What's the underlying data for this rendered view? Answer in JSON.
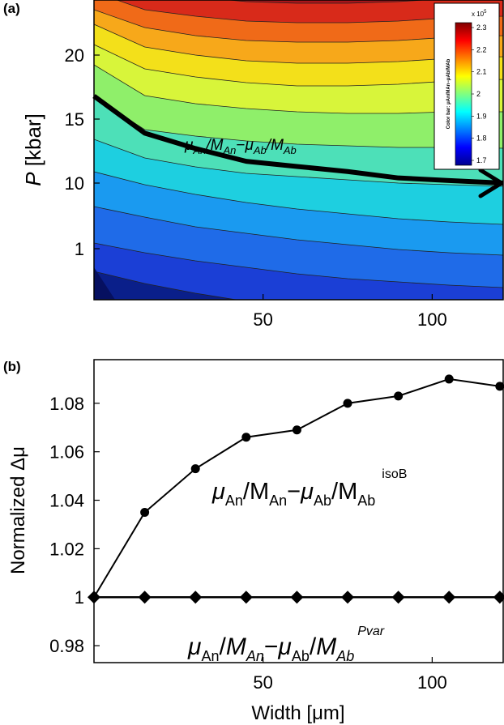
{
  "colors": {
    "contour_levels": [
      "#0a1f8a",
      "#1b3fd6",
      "#1f6be8",
      "#1a9af0",
      "#1ecfe0",
      "#4de0b8",
      "#8fef6a",
      "#d8f53a",
      "#f3e01a",
      "#f7a81a",
      "#f06a18",
      "#d82a1a",
      "#a8141a",
      "#7a0e10"
    ],
    "colorbar": [
      "#00008f",
      "#0000ff",
      "#0080ff",
      "#00ffff",
      "#80ff80",
      "#ffff00",
      "#ff8000",
      "#ff0000",
      "#800000"
    ]
  },
  "panel_a": {
    "label": "(a)",
    "ylabel_italic": "P",
    "ylabel_rest": " [kbar]",
    "xtick_labels": [
      "50",
      "100"
    ],
    "ytick_labels": [
      "20",
      "15",
      "10",
      "1"
    ],
    "curve_label": {
      "mu1": "μ",
      "sub1": "An",
      "slash1": "/",
      "m1": "M",
      "sub2": "An",
      "minus": "−",
      "mu2": "μ",
      "sub3": "Ab",
      "slash2": "/",
      "m2": "M",
      "sub4": "Ab"
    },
    "colorbar": {
      "scale": "x 10",
      "scale_exp": "5",
      "title": "Color bar: μAn/MAn−μAb/MAb",
      "tick_labels": [
        "2.3",
        "2.2",
        "2.1",
        "2",
        "1.9",
        "1.8",
        "1.7"
      ]
    }
  },
  "panel_b": {
    "label": "(b)",
    "ylabel": "Normalized Δμ",
    "xlabel": "Width [μm]",
    "xtick_labels": [
      "50",
      "100"
    ],
    "ytick_labels": [
      "1.08",
      "1.06",
      "1.04",
      "1.02",
      "1",
      "0.98"
    ],
    "label_isoB": {
      "mu1": "μ",
      "sub1": "An",
      "slash1": "/M",
      "sub2": "An",
      "minus": "−",
      "mu2": "μ",
      "sub3": "Ab",
      "slash2": "/M",
      "sub4": "Ab",
      "sup": "isoB"
    },
    "label_pvar": {
      "mu1": "μ",
      "sub1": "An",
      "slash1": "/",
      "m1": "M",
      "sub2": "An",
      "minus": "−",
      "mu2": "μ",
      "sub3": "Ab",
      "slash2": "/",
      "m2": "M",
      "sub4": "Ab",
      "sup": "Pvar"
    }
  },
  "chart_data": [
    {
      "type": "heatmap",
      "panel": "(a)",
      "title": "",
      "xlabel": "",
      "ylabel": "P [kbar]",
      "xlim": [
        0,
        121
      ],
      "x_ticks": [
        50,
        100
      ],
      "y_ticks": [
        20,
        15,
        10,
        1
      ],
      "colorbar": {
        "label": "μAn/MAn−μAb/MAb",
        "scale": "x 10^5",
        "range": [
          1.7,
          2.3
        ],
        "ticks": [
          2.3,
          2.2,
          2.1,
          2,
          1.9,
          1.8,
          1.7
        ]
      },
      "series": [
        {
          "name": "μAn/MAn−μAb/MAb",
          "x": [
            0,
            15,
            30,
            45,
            60,
            75,
            90,
            105,
            121
          ],
          "y": [
            16.8,
            13.9,
            12.7,
            11.7,
            11.3,
            10.9,
            10.4,
            10.2,
            10.0
          ]
        }
      ]
    },
    {
      "type": "line",
      "panel": "(b)",
      "title": "",
      "xlabel": "Width [μm]",
      "ylabel": "Normalized Δμ",
      "xlim": [
        0,
        121
      ],
      "ylim": [
        0.973,
        1.098
      ],
      "x_ticks": [
        50,
        100
      ],
      "y_ticks": [
        1.08,
        1.06,
        1.04,
        1.02,
        1,
        0.98
      ],
      "x": [
        0,
        15,
        30,
        45,
        60,
        75,
        90,
        105,
        120
      ],
      "series": [
        {
          "name": "μAn/MAn−μAb/MAb isoB",
          "marker": "circle",
          "values": [
            1.0,
            1.035,
            1.053,
            1.066,
            1.069,
            1.08,
            1.083,
            1.09,
            1.087
          ]
        },
        {
          "name": "μAn/MAn−μAb/MAb Pvar",
          "marker": "diamond",
          "values": [
            1.0,
            1.0,
            1.0,
            1.0,
            1.0,
            1.0,
            1.0,
            1.0,
            1.0
          ]
        }
      ]
    }
  ]
}
